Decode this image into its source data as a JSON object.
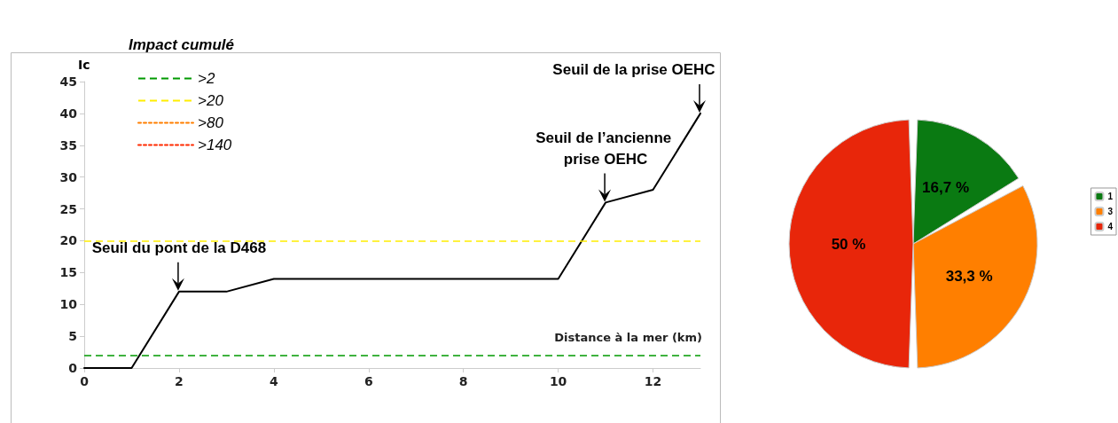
{
  "chart_data": [
    {
      "type": "line",
      "legend_title": "Impact cumulé",
      "ylabel": "Ic",
      "xlabel": "Distance à la mer (km)",
      "xlim": [
        0,
        13
      ],
      "xticks": [
        0,
        2,
        4,
        6,
        8,
        10,
        12
      ],
      "ylim": [
        0,
        45
      ],
      "yticks": [
        0,
        5,
        10,
        15,
        20,
        25,
        30,
        35,
        40,
        45
      ],
      "grid": false,
      "legend": "top left",
      "marker": "none",
      "series": [
        {
          "color": "#000000",
          "x": [
            0,
            1,
            2,
            3,
            4,
            10,
            11,
            12,
            13
          ],
          "values": [
            0,
            0,
            12,
            12,
            14,
            14,
            26,
            28,
            40
          ],
          "line_style": "solid"
        },
        {
          "name": ">80",
          "color": "#ff7f00",
          "line_style": "dotted"
        },
        {
          "name": ">140",
          "color": "#ff2a00",
          "line_style": "dotted"
        }
      ],
      "ref_lines": [
        {
          "axis": "y",
          "value": 2,
          "label": ">2",
          "color": "#009900",
          "line_style": "dashed"
        },
        {
          "axis": "y",
          "value": 20,
          "label": ">20",
          "color": "#ffee00",
          "line_style": "dashed"
        }
      ],
      "annotations": [
        {
          "text": "Seuil du pont de la D468",
          "x": 2,
          "y": 12
        },
        {
          "text": "Seuil de l’ancienne prise OEHC",
          "x": 11,
          "y": 26
        },
        {
          "text": "Seuil de la prise OEHC",
          "x": 13,
          "y": 40
        }
      ]
    },
    {
      "type": "pie",
      "categories": [
        "1",
        "3",
        "4"
      ],
      "values": [
        16.7,
        33.3,
        50
      ],
      "value_labels": [
        "16,7 %",
        "33,3 %",
        "50 %"
      ],
      "colors": [
        "#0a7a12",
        "#ff7f00",
        "#e8260a"
      ],
      "legend": "right"
    }
  ]
}
